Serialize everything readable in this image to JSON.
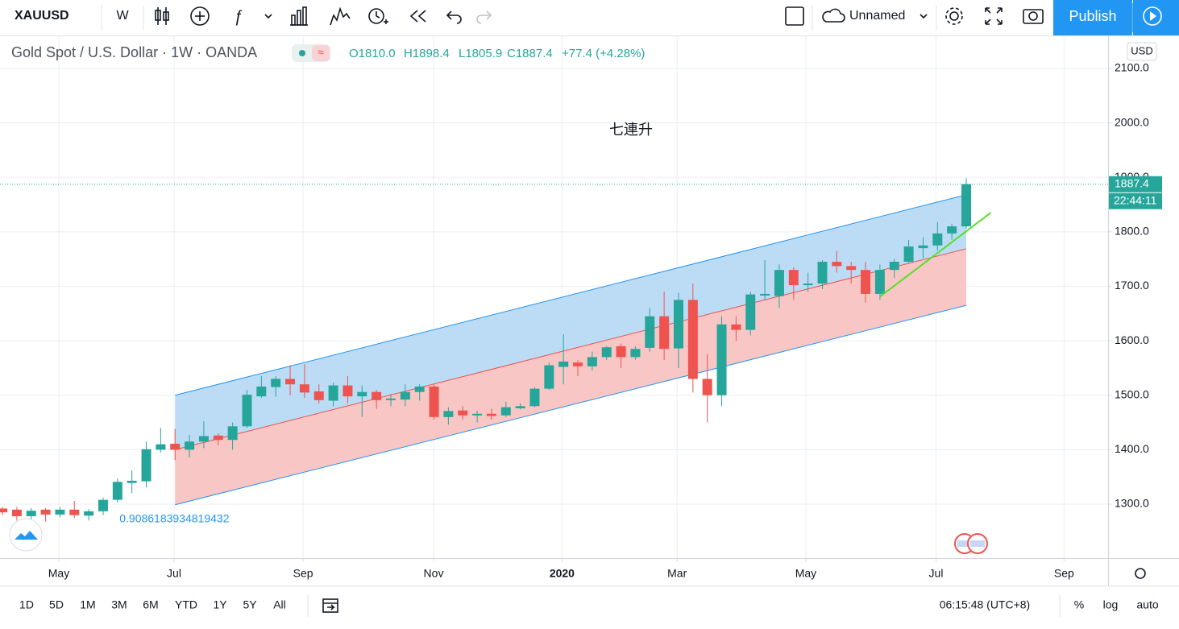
{
  "toolbar": {
    "symbol": "XAUUSD",
    "interval": "W",
    "layout_name": "Unnamed",
    "publish": "Publish"
  },
  "legend": {
    "title": "Gold Spot / U.S. Dollar · 1W · OANDA",
    "values": [
      "O1810.0",
      "H1898.4",
      "L1805.9",
      "C1887.4",
      "+77.4 (+4.28%)"
    ]
  },
  "price_axis": {
    "currency": "USD"
  },
  "bottom_bar": {
    "ranges": [
      "1D",
      "5D",
      "1M",
      "3M",
      "6M",
      "YTD",
      "1Y",
      "5Y",
      "All"
    ],
    "clock": "06:15:48 (UTC+8)",
    "percent": "%",
    "log": "log",
    "auto": "auto"
  },
  "chart_data": {
    "type": "candlestick",
    "up_color": "#26a69a",
    "down_color": "#ef5350",
    "open": [
      1292,
      1290,
      1278,
      1290,
      1281,
      1290,
      1279,
      1287,
      1308,
      1339,
      1342,
      1400,
      1411,
      1400,
      1415,
      1426,
      1418,
      1443,
      1498,
      1515,
      1530,
      1520,
      1507,
      1490,
      1518,
      1498,
      1506,
      1491,
      1492,
      1506,
      1516,
      1460,
      1472,
      1463,
      1466,
      1463,
      1476,
      1480,
      1512,
      1552,
      1560,
      1553,
      1570,
      1590,
      1570,
      1587,
      1645,
      1586,
      1675,
      1530,
      1500,
      1630,
      1620,
      1683,
      1682,
      1730,
      1702,
      1705,
      1745,
      1737,
      1730,
      1686,
      1730,
      1745,
      1770,
      1775,
      1797,
      1810.0
    ],
    "high": [
      1295,
      1295,
      1293,
      1293,
      1295,
      1306,
      1291,
      1312,
      1347,
      1362,
      1415,
      1440,
      1438,
      1427,
      1452,
      1430,
      1450,
      1510,
      1535,
      1535,
      1555,
      1557,
      1520,
      1523,
      1535,
      1518,
      1510,
      1502,
      1520,
      1520,
      1520,
      1478,
      1480,
      1472,
      1475,
      1488,
      1485,
      1515,
      1560,
      1612,
      1565,
      1580,
      1590,
      1595,
      1590,
      1660,
      1690,
      1688,
      1705,
      1575,
      1645,
      1645,
      1690,
      1748,
      1740,
      1735,
      1725,
      1748,
      1765,
      1745,
      1745,
      1740,
      1750,
      1785,
      1790,
      1818,
      1815,
      1898.4
    ],
    "low": [
      1280,
      1270,
      1273,
      1268,
      1276,
      1275,
      1270,
      1280,
      1303,
      1320,
      1331,
      1395,
      1381,
      1386,
      1403,
      1408,
      1400,
      1440,
      1495,
      1497,
      1500,
      1495,
      1485,
      1480,
      1485,
      1460,
      1475,
      1480,
      1480,
      1490,
      1455,
      1446,
      1455,
      1450,
      1455,
      1460,
      1474,
      1478,
      1510,
      1520,
      1535,
      1545,
      1565,
      1550,
      1565,
      1580,
      1565,
      1550,
      1505,
      1450,
      1480,
      1600,
      1610,
      1675,
      1660,
      1675,
      1690,
      1695,
      1725,
      1705,
      1670,
      1675,
      1715,
      1742,
      1752,
      1765,
      1785,
      1805.9
    ],
    "close": [
      1285,
      1278,
      1288,
      1281,
      1290,
      1280,
      1287,
      1308,
      1341,
      1343,
      1401,
      1410,
      1400,
      1415,
      1425,
      1418,
      1443,
      1501,
      1516,
      1530,
      1520,
      1505,
      1491,
      1518,
      1498,
      1506,
      1491,
      1494,
      1506,
      1516,
      1460,
      1471,
      1463,
      1466,
      1462,
      1478,
      1480,
      1512,
      1555,
      1562,
      1553,
      1570,
      1588,
      1570,
      1585,
      1645,
      1585,
      1675,
      1530,
      1500,
      1630,
      1620,
      1685,
      1686,
      1730,
      1702,
      1705,
      1745,
      1737,
      1730,
      1686,
      1730,
      1745,
      1773,
      1775,
      1797,
      1810,
      1887.4
    ],
    "xlim": [
      -0.17,
      76.86
    ],
    "xticks": [
      {
        "value": 3.92,
        "label": "May"
      },
      {
        "value": 11.93,
        "label": "Jul"
      },
      {
        "value": 20.9,
        "label": "Sep"
      },
      {
        "value": 29.97,
        "label": "Nov"
      },
      {
        "value": 38.9,
        "label": "2020"
      },
      {
        "value": 46.9,
        "label": "Mar"
      },
      {
        "value": 55.85,
        "label": "May"
      },
      {
        "value": 64.9,
        "label": "Jul"
      },
      {
        "value": 73.8,
        "label": "Sep"
      }
    ],
    "ylim": [
      1201,
      2159
    ],
    "yticks": [
      {
        "value": 1300,
        "label": "1300.0"
      },
      {
        "value": 1400,
        "label": "1400.0"
      },
      {
        "value": 1500,
        "label": "1500.0"
      },
      {
        "value": 1600,
        "label": "1600.0"
      },
      {
        "value": 1700,
        "label": "1700.0"
      },
      {
        "value": 1800,
        "label": "1800.0"
      },
      {
        "value": 1900,
        "label": "1900.0"
      },
      {
        "value": 2000,
        "label": "2000.0"
      },
      {
        "value": 2100,
        "label": "2100.0"
      }
    ],
    "grid": true,
    "countdown": "22:44:11",
    "channel": {
      "x": [
        12,
        67
      ],
      "upper": [
        1500,
        1868
      ],
      "middle": [
        1400,
        1769
      ],
      "lower": [
        1299,
        1665
      ],
      "upper_fill": "#bcdcf6",
      "lower_fill": "#f8c6c4",
      "line_color": "#2196f3",
      "middle_color": "#ef5350",
      "pearson": 0.9086183934819432
    },
    "trend_line": {
      "x": [
        61,
        68.7
      ],
      "y": [
        1681,
        1835
      ],
      "color": "#55e02c"
    },
    "annotation": "七連升"
  }
}
